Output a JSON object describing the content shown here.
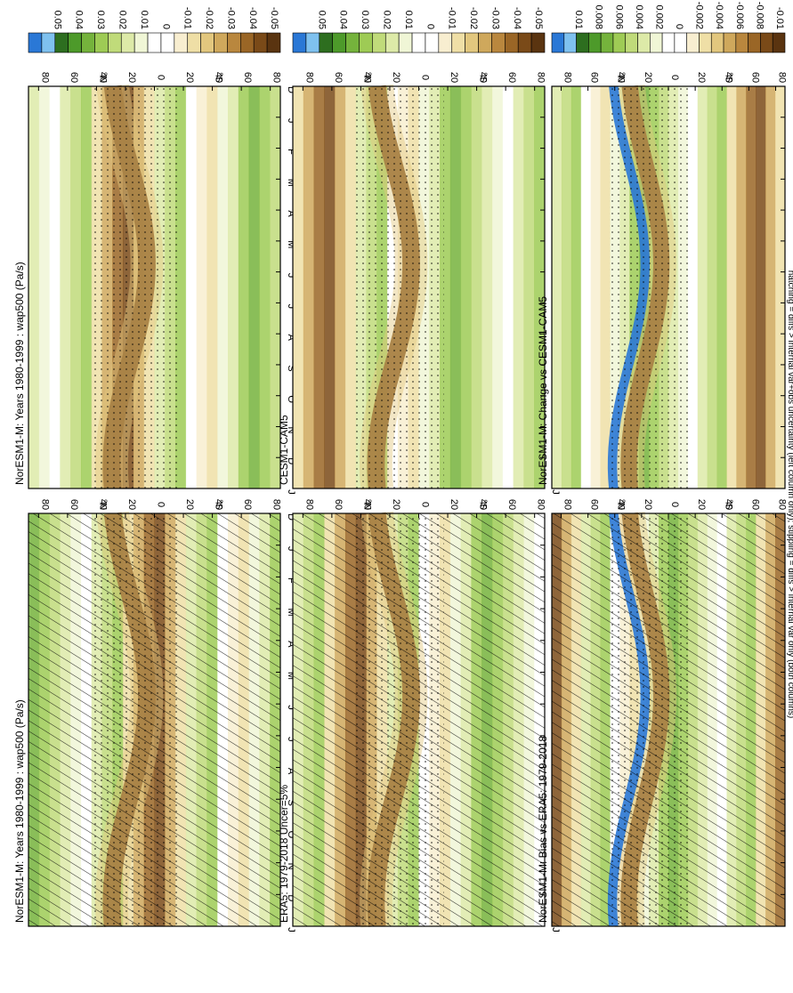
{
  "figure": {
    "footnote": "hatching = diffs > internal var+obs uncertainty (left column only); stippling = diffs > internal var only (both columns)",
    "month_ticks": [
      "D",
      "J",
      "F",
      "M",
      "A",
      "M",
      "J",
      "J",
      "A",
      "S",
      "O",
      "N",
      "D",
      "J"
    ],
    "lat_ticks": [
      "80",
      "60",
      "40",
      "20",
      "0",
      "20",
      "40",
      "60",
      "80"
    ],
    "lat_hemi": [
      "°N",
      "°S"
    ]
  },
  "chart_data": [
    {
      "type": "heatmap",
      "title": "NorESM1-M: Years 1980-1999 : wap500 (Pa/s)",
      "x": [
        "D",
        "J",
        "F",
        "M",
        "A",
        "M",
        "J",
        "J",
        "A",
        "S",
        "O",
        "N",
        "D",
        "J"
      ],
      "y": [
        "80",
        "60",
        "40",
        "20",
        "0",
        "20",
        "40",
        "60",
        "80"
      ],
      "colorbar": [
        "0.05",
        "0.04",
        "0.03",
        "0.02",
        "0.01",
        "0",
        "-0.01",
        "-0.02",
        "-0.03",
        "-0.04",
        "-0.05"
      ],
      "hatching": true,
      "stippling": true
    },
    {
      "type": "heatmap",
      "title": "NorESM1-M: Years 1980-1999 : wap500 (Pa/s)",
      "x": [
        "D",
        "J",
        "F",
        "M",
        "A",
        "M",
        "J",
        "J",
        "A",
        "S",
        "O",
        "N",
        "D",
        "J"
      ],
      "y": [
        "80",
        "60",
        "40",
        "20",
        "0",
        "20",
        "40",
        "60",
        "80"
      ],
      "colorbar": [
        "0.05",
        "0.04",
        "0.03",
        "0.02",
        "0.01",
        "0",
        "-0.01",
        "-0.02",
        "-0.03",
        "-0.04",
        "-0.05"
      ],
      "hatching": false,
      "stippling": true
    },
    {
      "type": "heatmap",
      "title": "ERA5: 1979-2018 Uncer=5%",
      "x": [
        "D",
        "J",
        "F",
        "M",
        "A",
        "M",
        "J",
        "J",
        "A",
        "S",
        "O",
        "N",
        "D",
        "J"
      ],
      "y": [
        "80",
        "60",
        "40",
        "20",
        "0",
        "20",
        "40",
        "60",
        "80"
      ],
      "colorbar": [
        "0.05",
        "0.04",
        "0.03",
        "0.02",
        "0.01",
        "0",
        "-0.01",
        "-0.02",
        "-0.03",
        "-0.04",
        "-0.05"
      ],
      "hatching": true,
      "stippling": true
    },
    {
      "type": "heatmap",
      "title": "CESM1-CAM5",
      "x": [
        "D",
        "J",
        "F",
        "M",
        "A",
        "M",
        "J",
        "J",
        "A",
        "S",
        "O",
        "N",
        "D",
        "J"
      ],
      "y": [
        "80",
        "60",
        "40",
        "20",
        "0",
        "20",
        "40",
        "60",
        "80"
      ],
      "colorbar": [
        "0.05",
        "0.04",
        "0.03",
        "0.02",
        "0.01",
        "0",
        "-0.01",
        "-0.02",
        "-0.03",
        "-0.04",
        "-0.05"
      ],
      "hatching": false,
      "stippling": true
    },
    {
      "type": "heatmap",
      "title": "NorESM1-M: Bias vs ERA5: 1979-2018",
      "x": [
        "D",
        "J",
        "F",
        "M",
        "A",
        "M",
        "J",
        "J",
        "A",
        "S",
        "O",
        "N",
        "D",
        "J"
      ],
      "y": [
        "80",
        "60",
        "40",
        "20",
        "0",
        "20",
        "40",
        "60",
        "80"
      ],
      "colorbar": [
        "0.01",
        "0.008",
        "0.006",
        "0.004",
        "0.002",
        "0",
        "-0.002",
        "-0.004",
        "-0.006",
        "-0.008",
        "-0.01"
      ],
      "hatching": true,
      "stippling": true
    },
    {
      "type": "heatmap",
      "title": "NorESM1-M: Change vs CESM1-CAM5",
      "x": [
        "D",
        "J",
        "F",
        "M",
        "A",
        "M",
        "J",
        "J",
        "A",
        "S",
        "O",
        "N",
        "D",
        "J"
      ],
      "y": [
        "80",
        "60",
        "40",
        "20",
        "0",
        "20",
        "40",
        "60",
        "80"
      ],
      "colorbar": [
        "0.01",
        "0.008",
        "0.006",
        "0.004",
        "0.002",
        "0",
        "-0.002",
        "-0.004",
        "-0.006",
        "-0.008",
        "-0.01"
      ],
      "hatching": false,
      "stippling": true
    }
  ],
  "colors": {
    "scale": [
      "#2a78d6",
      "#7fc1ef",
      "#2d6e1f",
      "#4d9a2a",
      "#75b33c",
      "#9ecb55",
      "#c0db7a",
      "#ddeaa8",
      "#f0f6d6",
      "#ffffff",
      "#ffffff",
      "#f8eed0",
      "#efdfa6",
      "#e2c77e",
      "#cfa85c",
      "#b9873e",
      "#9a6626",
      "#7a4a18",
      "#5a3410"
    ]
  }
}
